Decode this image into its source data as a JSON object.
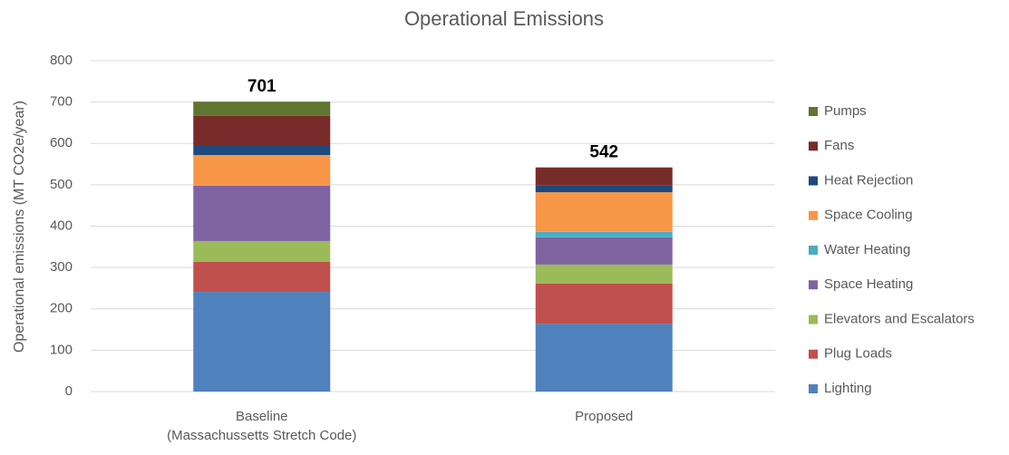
{
  "chart_data": {
    "type": "stacked-bar",
    "title": "Operational Emissions",
    "y_label": "Operational emissions (MT CO2e/year)",
    "categories": [
      [
        "Baseline",
        "(Massachussetts Stretch Code)"
      ],
      [
        "Proposed"
      ]
    ],
    "totals": [
      701,
      542
    ],
    "series": [
      {
        "name": "Lighting",
        "color": "#4f81bd",
        "values": [
          241,
          164
        ]
      },
      {
        "name": "Plug Loads",
        "color": "#c0504d",
        "values": [
          73,
          97
        ]
      },
      {
        "name": "Elevators and Escalators",
        "color": "#9bbb59",
        "values": [
          50,
          46
        ]
      },
      {
        "name": "Space Heating",
        "color": "#8064a2",
        "values": [
          134,
          66
        ]
      },
      {
        "name": "Water Heating",
        "color": "#4bacc6",
        "values": [
          0,
          13
        ]
      },
      {
        "name": "Space Cooling",
        "color": "#f79646",
        "values": [
          74,
          96
        ]
      },
      {
        "name": "Heat Rejection",
        "color": "#1f497d",
        "values": [
          22,
          16
        ]
      },
      {
        "name": "Fans",
        "color": "#772c2a",
        "values": [
          73,
          44
        ]
      },
      {
        "name": "Pumps",
        "color": "#5f7530",
        "values": [
          34,
          0
        ]
      }
    ],
    "ylim": [
      0,
      800
    ],
    "yticks": [
      0,
      100,
      200,
      300,
      400,
      500,
      600,
      700,
      800
    ],
    "grid": true,
    "legend": "right"
  }
}
